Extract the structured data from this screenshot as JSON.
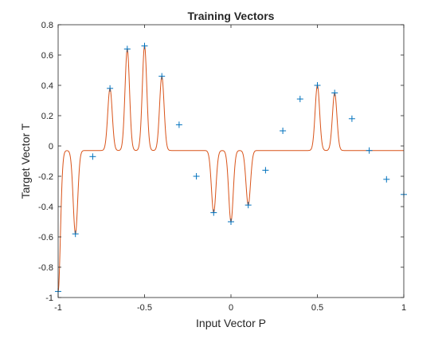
{
  "chart_data": {
    "type": "line",
    "title": "Training Vectors",
    "xlabel": "Input Vector P",
    "ylabel": "Target Vector T",
    "xlim": [
      -1,
      1
    ],
    "ylim": [
      -1,
      0.8
    ],
    "xticks": [
      -1,
      -0.5,
      0,
      0.5,
      1
    ],
    "xtick_labels": [
      "-1",
      "-0.5",
      "0",
      "0.5",
      "1"
    ],
    "yticks": [
      -1,
      -0.8,
      -0.6,
      -0.4,
      -0.2,
      0,
      0.2,
      0.4,
      0.6,
      0.8
    ],
    "ytick_labels": [
      "-1",
      "-0.8",
      "-0.6",
      "-0.4",
      "-0.2",
      "0",
      "0.2",
      "0.4",
      "0.6",
      "0.8"
    ],
    "grid": false,
    "series": [
      {
        "marker": "plus",
        "color": "#0072BD",
        "x": [
          -1,
          -0.9,
          -0.8,
          -0.7,
          -0.6,
          -0.5,
          -0.4,
          -0.3,
          -0.2,
          -0.1,
          0,
          0.1,
          0.2,
          0.3,
          0.4,
          0.5,
          0.6,
          0.7,
          0.8,
          0.9,
          1
        ],
        "y": [
          -0.96,
          -0.58,
          -0.07,
          0.38,
          0.64,
          0.66,
          0.46,
          0.14,
          -0.2,
          -0.44,
          -0.5,
          -0.39,
          -0.16,
          0.1,
          0.31,
          0.4,
          0.35,
          0.18,
          -0.03,
          -0.22,
          -0.32
        ]
      },
      {
        "style": "line",
        "color": "#D95319",
        "baseline": -0.03,
        "peaks_x": [
          -1,
          -0.9,
          -0.7,
          -0.6,
          -0.5,
          -0.4,
          -0.1,
          0,
          0.1,
          0.5,
          0.6
        ],
        "peaks_y": [
          -0.96,
          -0.58,
          0.38,
          0.64,
          0.66,
          0.46,
          -0.44,
          -0.5,
          -0.39,
          0.4,
          0.35
        ]
      }
    ]
  }
}
